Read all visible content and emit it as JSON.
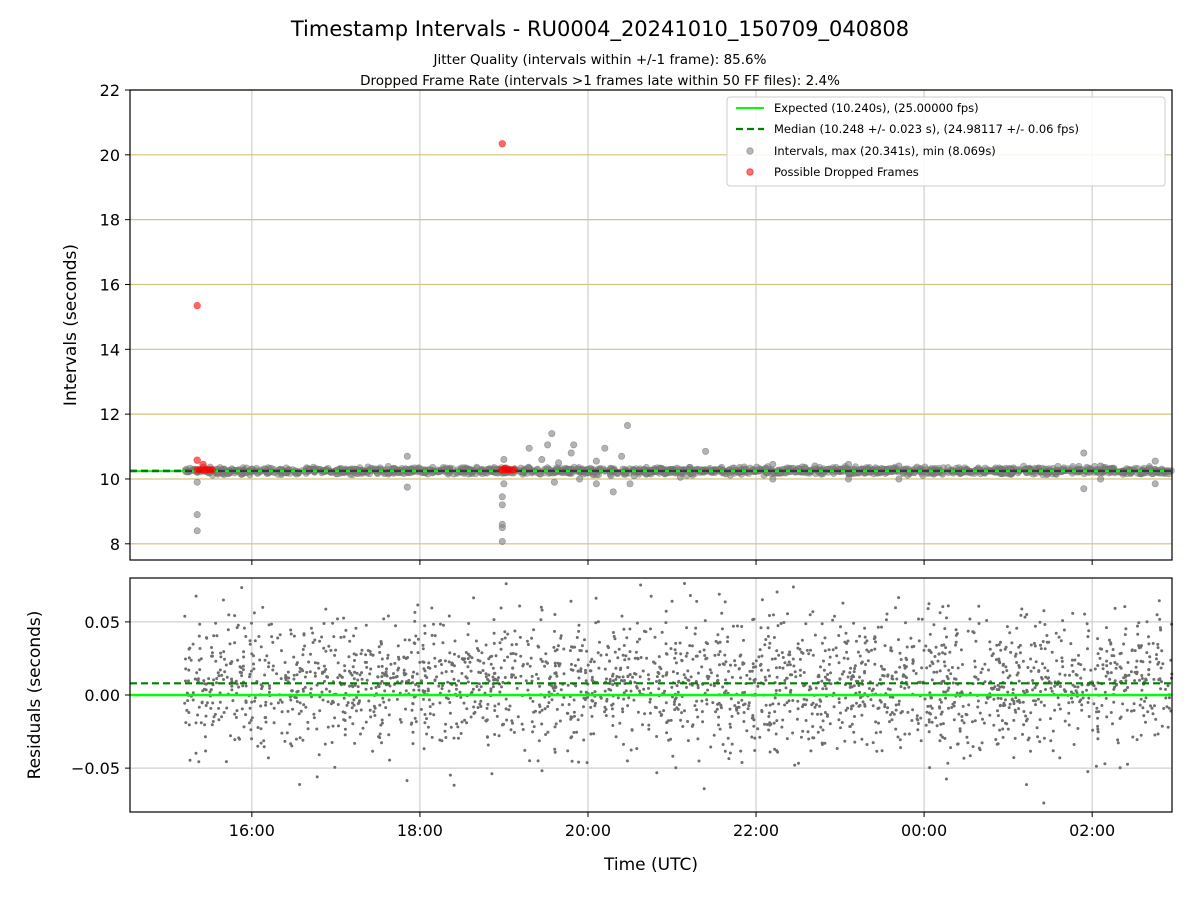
{
  "chart_data": {
    "type": "scatter",
    "title": "Timestamp Intervals - RU0004_20241010_150709_040808",
    "subtitle_lines": [
      "Jitter Quality (intervals within +/-1 frame): 85.6%",
      "Dropped Frame Rate (intervals >1 frames late within 50 FF files): 2.4%"
    ],
    "x_axis": {
      "label": "Time (UTC)",
      "range_hours": [
        14.55,
        26.95
      ],
      "tick_labels": [
        "16:00",
        "18:00",
        "20:00",
        "22:00",
        "00:00",
        "02:00"
      ],
      "tick_hours": [
        16,
        18,
        20,
        22,
        24,
        26
      ],
      "grid": true
    },
    "top_panel": {
      "ylabel": "Intervals (seconds)",
      "ylim": [
        7.5,
        22
      ],
      "y_ticks": [
        8,
        10,
        12,
        14,
        16,
        18,
        20,
        22
      ],
      "y_tick_labels": [
        "8",
        "10",
        "12",
        "14",
        "16",
        "18",
        "20",
        "22"
      ],
      "expected_line": 10.24,
      "median_line": 10.248,
      "series": [
        {
          "name": "Intervals, max (20.341s), min (8.069s)",
          "color": "#808080",
          "baseline": 10.25,
          "jitter": 0.05,
          "time_range_hours": [
            15.2,
            26.95
          ],
          "outliers": [
            {
              "x": 15.35,
              "y": 8.9
            },
            {
              "x": 15.35,
              "y": 8.4
            },
            {
              "x": 15.35,
              "y": 9.9
            },
            {
              "x": 17.85,
              "y": 10.7
            },
            {
              "x": 17.85,
              "y": 9.75
            },
            {
              "x": 18.98,
              "y": 8.07
            },
            {
              "x": 18.98,
              "y": 8.5
            },
            {
              "x": 18.98,
              "y": 8.6
            },
            {
              "x": 18.98,
              "y": 9.2
            },
            {
              "x": 18.98,
              "y": 9.45
            },
            {
              "x": 19.0,
              "y": 9.85
            },
            {
              "x": 19.0,
              "y": 10.6
            },
            {
              "x": 19.3,
              "y": 10.95
            },
            {
              "x": 19.45,
              "y": 10.6
            },
            {
              "x": 19.52,
              "y": 11.05
            },
            {
              "x": 19.57,
              "y": 11.4
            },
            {
              "x": 19.6,
              "y": 9.9
            },
            {
              "x": 19.65,
              "y": 10.5
            },
            {
              "x": 19.8,
              "y": 10.8
            },
            {
              "x": 19.83,
              "y": 11.05
            },
            {
              "x": 19.9,
              "y": 10.0
            },
            {
              "x": 20.1,
              "y": 10.55
            },
            {
              "x": 20.1,
              "y": 9.85
            },
            {
              "x": 20.2,
              "y": 10.95
            },
            {
              "x": 20.3,
              "y": 9.6
            },
            {
              "x": 20.4,
              "y": 10.7
            },
            {
              "x": 20.47,
              "y": 11.65
            },
            {
              "x": 20.5,
              "y": 9.85
            },
            {
              "x": 20.55,
              "y": 10.1
            },
            {
              "x": 21.1,
              "y": 10.05
            },
            {
              "x": 21.3,
              "y": 10.3
            },
            {
              "x": 21.4,
              "y": 10.85
            },
            {
              "x": 22.2,
              "y": 10.45
            },
            {
              "x": 22.2,
              "y": 10.0
            },
            {
              "x": 22.7,
              "y": 10.4
            },
            {
              "x": 23.1,
              "y": 10.45
            },
            {
              "x": 23.1,
              "y": 10.0
            },
            {
              "x": 23.7,
              "y": 10.4
            },
            {
              "x": 23.7,
              "y": 10.0
            },
            {
              "x": 25.9,
              "y": 10.8
            },
            {
              "x": 25.9,
              "y": 9.7
            },
            {
              "x": 26.1,
              "y": 10.4
            },
            {
              "x": 26.1,
              "y": 10.0
            },
            {
              "x": 26.75,
              "y": 10.55
            },
            {
              "x": 26.75,
              "y": 9.85
            }
          ]
        },
        {
          "name": "Possible Dropped Frames",
          "color": "#ff0000",
          "points": [
            {
              "x": 15.35,
              "y": 15.35
            },
            {
              "x": 18.98,
              "y": 20.341
            },
            {
              "x": 15.35,
              "y": 10.58
            },
            {
              "x": 15.42,
              "y": 10.45
            },
            {
              "x": 15.35,
              "y": 10.28
            },
            {
              "x": 15.38,
              "y": 10.28
            },
            {
              "x": 15.41,
              "y": 10.28
            },
            {
              "x": 15.44,
              "y": 10.28
            },
            {
              "x": 15.47,
              "y": 10.28
            },
            {
              "x": 15.5,
              "y": 10.28
            },
            {
              "x": 15.53,
              "y": 10.28
            },
            {
              "x": 18.97,
              "y": 10.28
            },
            {
              "x": 19.0,
              "y": 10.28
            },
            {
              "x": 19.03,
              "y": 10.28
            },
            {
              "x": 19.06,
              "y": 10.28
            },
            {
              "x": 19.09,
              "y": 10.28
            },
            {
              "x": 19.12,
              "y": 10.28
            },
            {
              "x": 19.01,
              "y": 10.33
            }
          ]
        }
      ],
      "legend": {
        "placement": "upper right",
        "entries": [
          {
            "label": "Expected (10.240s), (25.00000 fps)",
            "style": "solid-line",
            "color": "#00ff00"
          },
          {
            "label": "Median (10.248 +/- 0.023 s), (24.98117 +/- 0.06 fps)",
            "style": "dashed-line",
            "color": "#008000"
          },
          {
            "label": "Intervals, max (20.341s), min (8.069s)",
            "style": "marker",
            "color": "#808080"
          },
          {
            "label": "Possible Dropped Frames",
            "style": "marker",
            "color": "#ff0000"
          }
        ]
      }
    },
    "bottom_panel": {
      "ylabel": "Residuals (seconds)",
      "ylim": [
        -0.08,
        0.08
      ],
      "y_ticks": [
        0.05,
        0.0,
        -0.05
      ],
      "y_tick_labels": [
        "0.05",
        "0.00",
        "−0.05"
      ],
      "expected_line": 0.0,
      "median_line": 0.008,
      "series": [
        {
          "name": "Residuals",
          "color": "#6e6e6e",
          "mean": 0.008,
          "std": 0.023,
          "time_range_hours": [
            15.2,
            26.95
          ]
        }
      ]
    },
    "colors": {
      "expected": "#00ff00",
      "median": "#008000",
      "intervals": "#808080",
      "dropped": "#ff0000",
      "h_grid_top": "#d4c37a",
      "grid": "#d0d0d0",
      "median_marker_line": "#3a3a3a"
    }
  }
}
